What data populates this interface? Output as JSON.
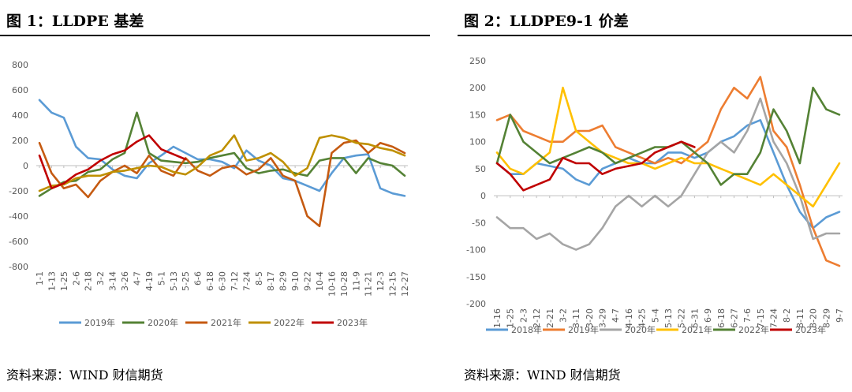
{
  "panels": [
    {
      "title": "图 1：LLDPE 基差",
      "source": "资料来源：WIND  财信期货",
      "chart_data": {
        "type": "line",
        "title": "图 1：LLDPE 基差",
        "xlabel": "",
        "ylabel": "",
        "ylim": [
          -800,
          800
        ],
        "y_ticks": [
          "800",
          "600",
          "400",
          "200",
          "0",
          "-200",
          "-400",
          "-600",
          "-800"
        ],
        "x_ticks": [
          "1-1",
          "1-13",
          "1-25",
          "2-6",
          "2-18",
          "3-2",
          "3-14",
          "3-26",
          "4-7",
          "4-19",
          "5-1",
          "5-13",
          "5-25",
          "6-6",
          "6-18",
          "6-30",
          "7-12",
          "7-24",
          "8-5",
          "8-17",
          "8-29",
          "9-10",
          "9-22",
          "10-4",
          "10-16",
          "10-28",
          "11-9",
          "11-21",
          "12-3",
          "12-15",
          "12-27"
        ],
        "grid": false,
        "legend_position": "bottom",
        "series": [
          {
            "name": "2019年",
            "color": "#5B9BD5",
            "values": [
              520,
              420,
              380,
              150,
              60,
              50,
              -30,
              -80,
              -100,
              20,
              80,
              150,
              100,
              50,
              50,
              30,
              -20,
              120,
              40,
              0,
              -100,
              -120,
              -160,
              -200,
              -60,
              60,
              80,
              90,
              -180,
              -220,
              -240
            ]
          },
          {
            "name": "2020年",
            "color": "#548235",
            "values": [
              -240,
              -180,
              -130,
              -120,
              -50,
              -30,
              50,
              100,
              420,
              100,
              40,
              30,
              20,
              30,
              60,
              80,
              100,
              -20,
              -60,
              -40,
              -30,
              -60,
              -80,
              40,
              60,
              60,
              -60,
              60,
              20,
              0,
              -80
            ]
          },
          {
            "name": "2021年",
            "color": "#C55A11",
            "values": [
              180,
              -60,
              -180,
              -150,
              -250,
              -120,
              -50,
              0,
              -60,
              80,
              -40,
              -80,
              60,
              -40,
              -80,
              -20,
              0,
              -70,
              -30,
              60,
              -80,
              -120,
              -400,
              -480,
              100,
              180,
              200,
              100,
              180,
              150,
              100
            ]
          },
          {
            "name": "2022年",
            "color": "#BF9000",
            "values": [
              -200,
              -160,
              -150,
              -100,
              -80,
              -80,
              -50,
              -40,
              -20,
              0,
              -10,
              -50,
              -70,
              -10,
              80,
              120,
              240,
              40,
              60,
              100,
              30,
              -80,
              -20,
              220,
              240,
              220,
              180,
              170,
              140,
              120,
              80
            ]
          },
          {
            "name": "2023年",
            "color": "#C00000",
            "values": [
              80,
              -180,
              -140,
              -70,
              -30,
              40,
              90,
              120,
              190,
              240,
              130,
              90,
              50
            ]
          }
        ]
      }
    },
    {
      "title": "图 2：LLDPE9-1 价差",
      "source": "资料来源：WIND  财信期货",
      "chart_data": {
        "type": "line",
        "title": "图 2：LLDPE9-1 价差",
        "xlabel": "",
        "ylabel": "",
        "ylim": [
          -200,
          250
        ],
        "y_ticks": [
          "250",
          "200",
          "150",
          "100",
          "50",
          "0",
          "-50",
          "-100",
          "-150",
          "-200"
        ],
        "x_ticks": [
          "1-16",
          "1-25",
          "2-3",
          "2-12",
          "2-21",
          "3-2",
          "3-11",
          "3-20",
          "3-29",
          "4-7",
          "4-16",
          "4-25",
          "5-4",
          "5-13",
          "5-22",
          "5-31",
          "6-9",
          "6-18",
          "6-27",
          "7-6",
          "7-15",
          "7-24",
          "8-2",
          "8-11",
          "8-20",
          "8-29",
          "9-7"
        ],
        "grid": false,
        "legend_position": "bottom",
        "series": [
          {
            "name": "2018年",
            "color": "#5B9BD5",
            "values": [
              60,
              40,
              40,
              60,
              55,
              50,
              30,
              20,
              50,
              60,
              70,
              60,
              60,
              80,
              80,
              70,
              80,
              100,
              110,
              130,
              140,
              80,
              20,
              -30,
              -60,
              -40,
              -30
            ]
          },
          {
            "name": "2019年",
            "color": "#ED7D31",
            "values": [
              140,
              150,
              120,
              110,
              100,
              100,
              120,
              120,
              130,
              90,
              80,
              70,
              60,
              70,
              60,
              80,
              100,
              160,
              200,
              180,
              220,
              120,
              90,
              20,
              -60,
              -120,
              -130
            ]
          },
          {
            "name": "2020年",
            "color": "#A5A5A5",
            "values": [
              -40,
              -60,
              -60,
              -80,
              -70,
              -90,
              -100,
              -90,
              -60,
              -20,
              0,
              -20,
              0,
              -20,
              0,
              40,
              80,
              100,
              80,
              120,
              180,
              100,
              60,
              0,
              -80,
              -70,
              -70
            ]
          },
          {
            "name": "2021年",
            "color": "#FFC000",
            "values": [
              80,
              50,
              40,
              60,
              80,
              200,
              120,
              100,
              80,
              70,
              60,
              60,
              50,
              60,
              70,
              60,
              60,
              50,
              40,
              30,
              20,
              40,
              20,
              0,
              -20,
              20,
              60
            ]
          },
          {
            "name": "2022年",
            "color": "#548235",
            "values": [
              60,
              150,
              100,
              80,
              60,
              70,
              80,
              90,
              80,
              60,
              70,
              80,
              90,
              90,
              100,
              80,
              60,
              20,
              40,
              40,
              80,
              160,
              120,
              60,
              200,
              160,
              150
            ]
          },
          {
            "name": "2023年",
            "color": "#C00000",
            "values": [
              60,
              40,
              10,
              20,
              30,
              70,
              60,
              60,
              40,
              50,
              55,
              60,
              80,
              90,
              100,
              90
            ]
          }
        ]
      }
    }
  ]
}
